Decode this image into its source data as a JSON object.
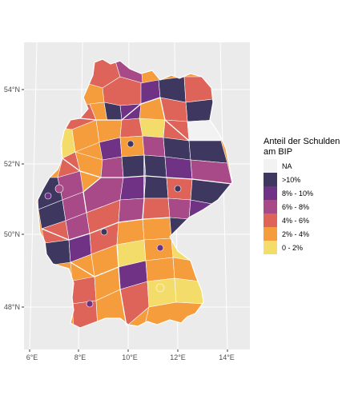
{
  "map": {
    "legend_title_lines": [
      "Anteil der Schulden",
      "am BIP"
    ],
    "legend_items": [
      {
        "label": "NA",
        "color": "#f2f2f2"
      },
      {
        "label": ">10%",
        "color": "#3e3760"
      },
      {
        "label": "8% - 10%",
        "color": "#6f3285"
      },
      {
        "label": "6% - 8%",
        "color": "#a74a87"
      },
      {
        "label": "4% - 6%",
        "color": "#de6459"
      },
      {
        "label": "2% - 4%",
        "color": "#f59d3d"
      },
      {
        "label": "0 - 2%",
        "color": "#f3dc6a"
      }
    ],
    "lat_labels": [
      "54°N",
      "52°N",
      "50°N",
      "48°N"
    ],
    "lon_labels": [
      "6°E",
      "8°E",
      "10°E",
      "12°E",
      "14°E"
    ],
    "colors": {
      "panel_background": "#ebebeb",
      "gridline": "#ffffff",
      "region_border": "#ffffff",
      "state_border": "#ffffff"
    }
  }
}
